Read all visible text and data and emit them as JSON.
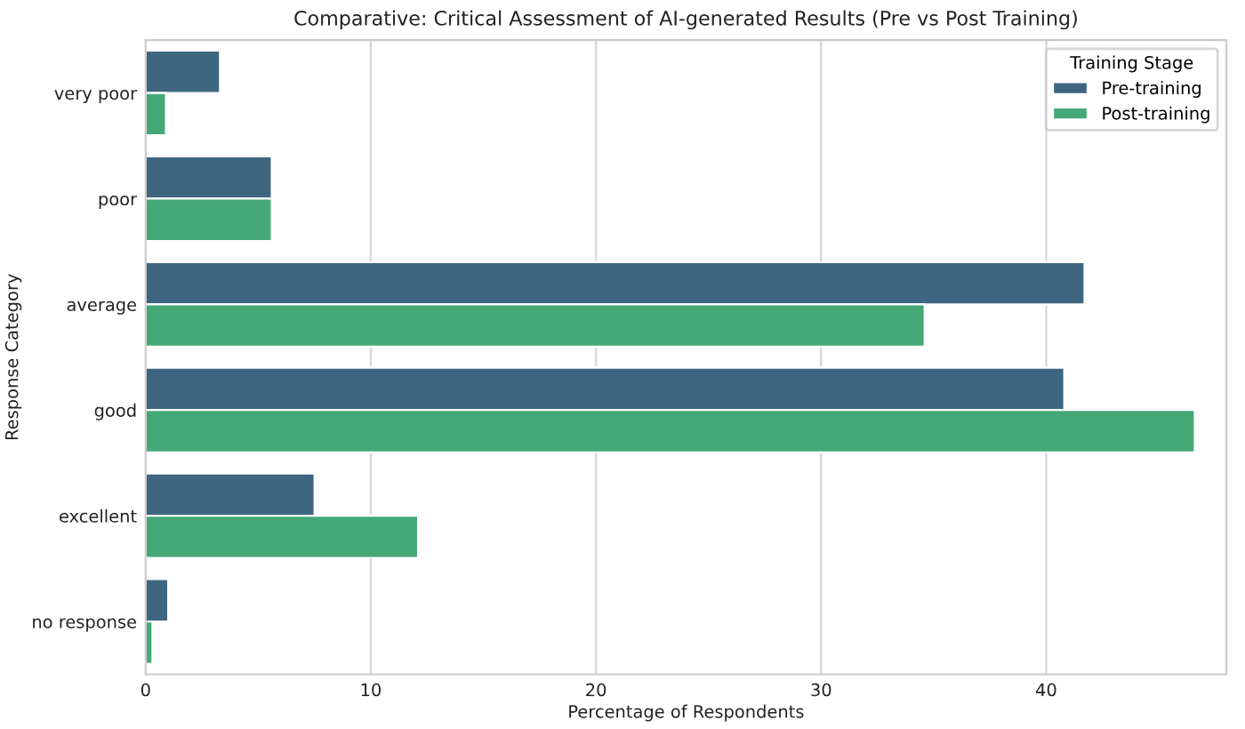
{
  "chart_data": {
    "type": "bar",
    "orientation": "horizontal",
    "title": "Comparative: Critical Assessment of AI-generated Results (Pre vs Post Training)",
    "xlabel": "Percentage of Respondents",
    "ylabel": "Response Category",
    "legend_title": "Training Stage",
    "categories": [
      "very poor",
      "poor",
      "average",
      "good",
      "excellent",
      "no response"
    ],
    "series": [
      {
        "name": "Pre-training",
        "color": "#3e6680",
        "values": [
          3.3,
          5.6,
          41.7,
          40.8,
          7.5,
          1.0
        ]
      },
      {
        "name": "Post-training",
        "color": "#45a877",
        "values": [
          0.9,
          5.6,
          34.6,
          46.6,
          12.1,
          0.3
        ]
      }
    ],
    "xlim": [
      0,
      48
    ],
    "xticks": [
      0,
      10,
      20,
      30,
      40
    ],
    "grid": "x",
    "legend": "top right"
  }
}
